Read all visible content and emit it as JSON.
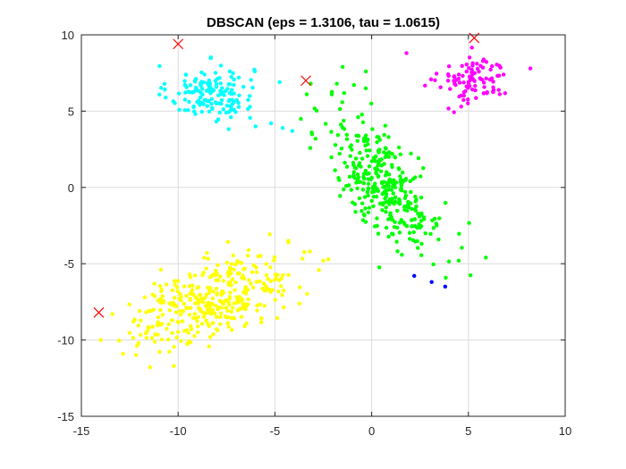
{
  "chart_data": {
    "type": "scatter",
    "title": "DBSCAN (eps = 1.3106, tau = 1.0615)",
    "xlabel": "",
    "ylabel": "",
    "xlim": [
      -15,
      10
    ],
    "ylim": [
      -15,
      10
    ],
    "x_ticks": [
      -15,
      -10,
      -5,
      0,
      5,
      10
    ],
    "y_ticks": [
      -15,
      -10,
      -5,
      0,
      5,
      10
    ],
    "x_tick_labels": [
      "-15",
      "-10",
      "-5",
      "0",
      "5",
      "10"
    ],
    "y_tick_labels": [
      "-15",
      "-10",
      "-5",
      "0",
      "5",
      "10"
    ],
    "grid": true,
    "box": true,
    "legend": "none",
    "clusters": [
      {
        "color": "#00ffff",
        "marker": "dot",
        "center": [
          -8.3,
          6.2
        ],
        "spread": [
          1.1,
          0.9
        ],
        "count": 150,
        "extra_points": [
          [
            -5.2,
            4.2
          ],
          [
            -4.6,
            3.9
          ],
          [
            -4.1,
            3.7
          ],
          [
            -9.6,
            7.4
          ],
          [
            -6.0,
            4.0
          ]
        ]
      },
      {
        "color": "#ff00ff",
        "marker": "dot",
        "center": [
          5.3,
          7.0
        ],
        "spread": [
          0.9,
          0.8
        ],
        "count": 100,
        "extra_points": [
          [
            8.2,
            7.8
          ],
          [
            1.8,
            8.8
          ]
        ]
      },
      {
        "color": "#00ff00",
        "marker": "dot",
        "center": [
          0.7,
          0.2
        ],
        "spread": [
          1.5,
          2.3
        ],
        "correlation": -0.65,
        "count": 350,
        "extra_points": [
          [
            -1.5,
            7.9
          ],
          [
            -1.8,
            6.8
          ],
          [
            -0.3,
            7.6
          ],
          [
            5.9,
            -4.6
          ],
          [
            4.5,
            -4.8
          ],
          [
            -3.1,
            3.6
          ]
        ]
      },
      {
        "color": "#ffff00",
        "marker": "dot",
        "center": [
          -8.2,
          -7.4
        ],
        "spread": [
          2.1,
          1.5
        ],
        "correlation": 0.55,
        "count": 360,
        "extra_points": [
          [
            -14.0,
            -10.0
          ],
          [
            -3.2,
            -4.2
          ],
          [
            -2.5,
            -4.8
          ],
          [
            -4.3,
            -3.6
          ],
          [
            -13.4,
            -8.3
          ]
        ]
      },
      {
        "color": "#0000ff",
        "marker": "dot",
        "points": [
          [
            2.2,
            -5.8
          ],
          [
            3.1,
            -6.2
          ],
          [
            3.8,
            -6.5
          ]
        ]
      }
    ],
    "noise": {
      "color": "#ff0000",
      "marker": "x",
      "points": [
        [
          -10.0,
          9.4
        ],
        [
          5.3,
          9.8
        ],
        [
          -3.4,
          7.0
        ],
        [
          -14.1,
          -8.2
        ]
      ]
    }
  }
}
